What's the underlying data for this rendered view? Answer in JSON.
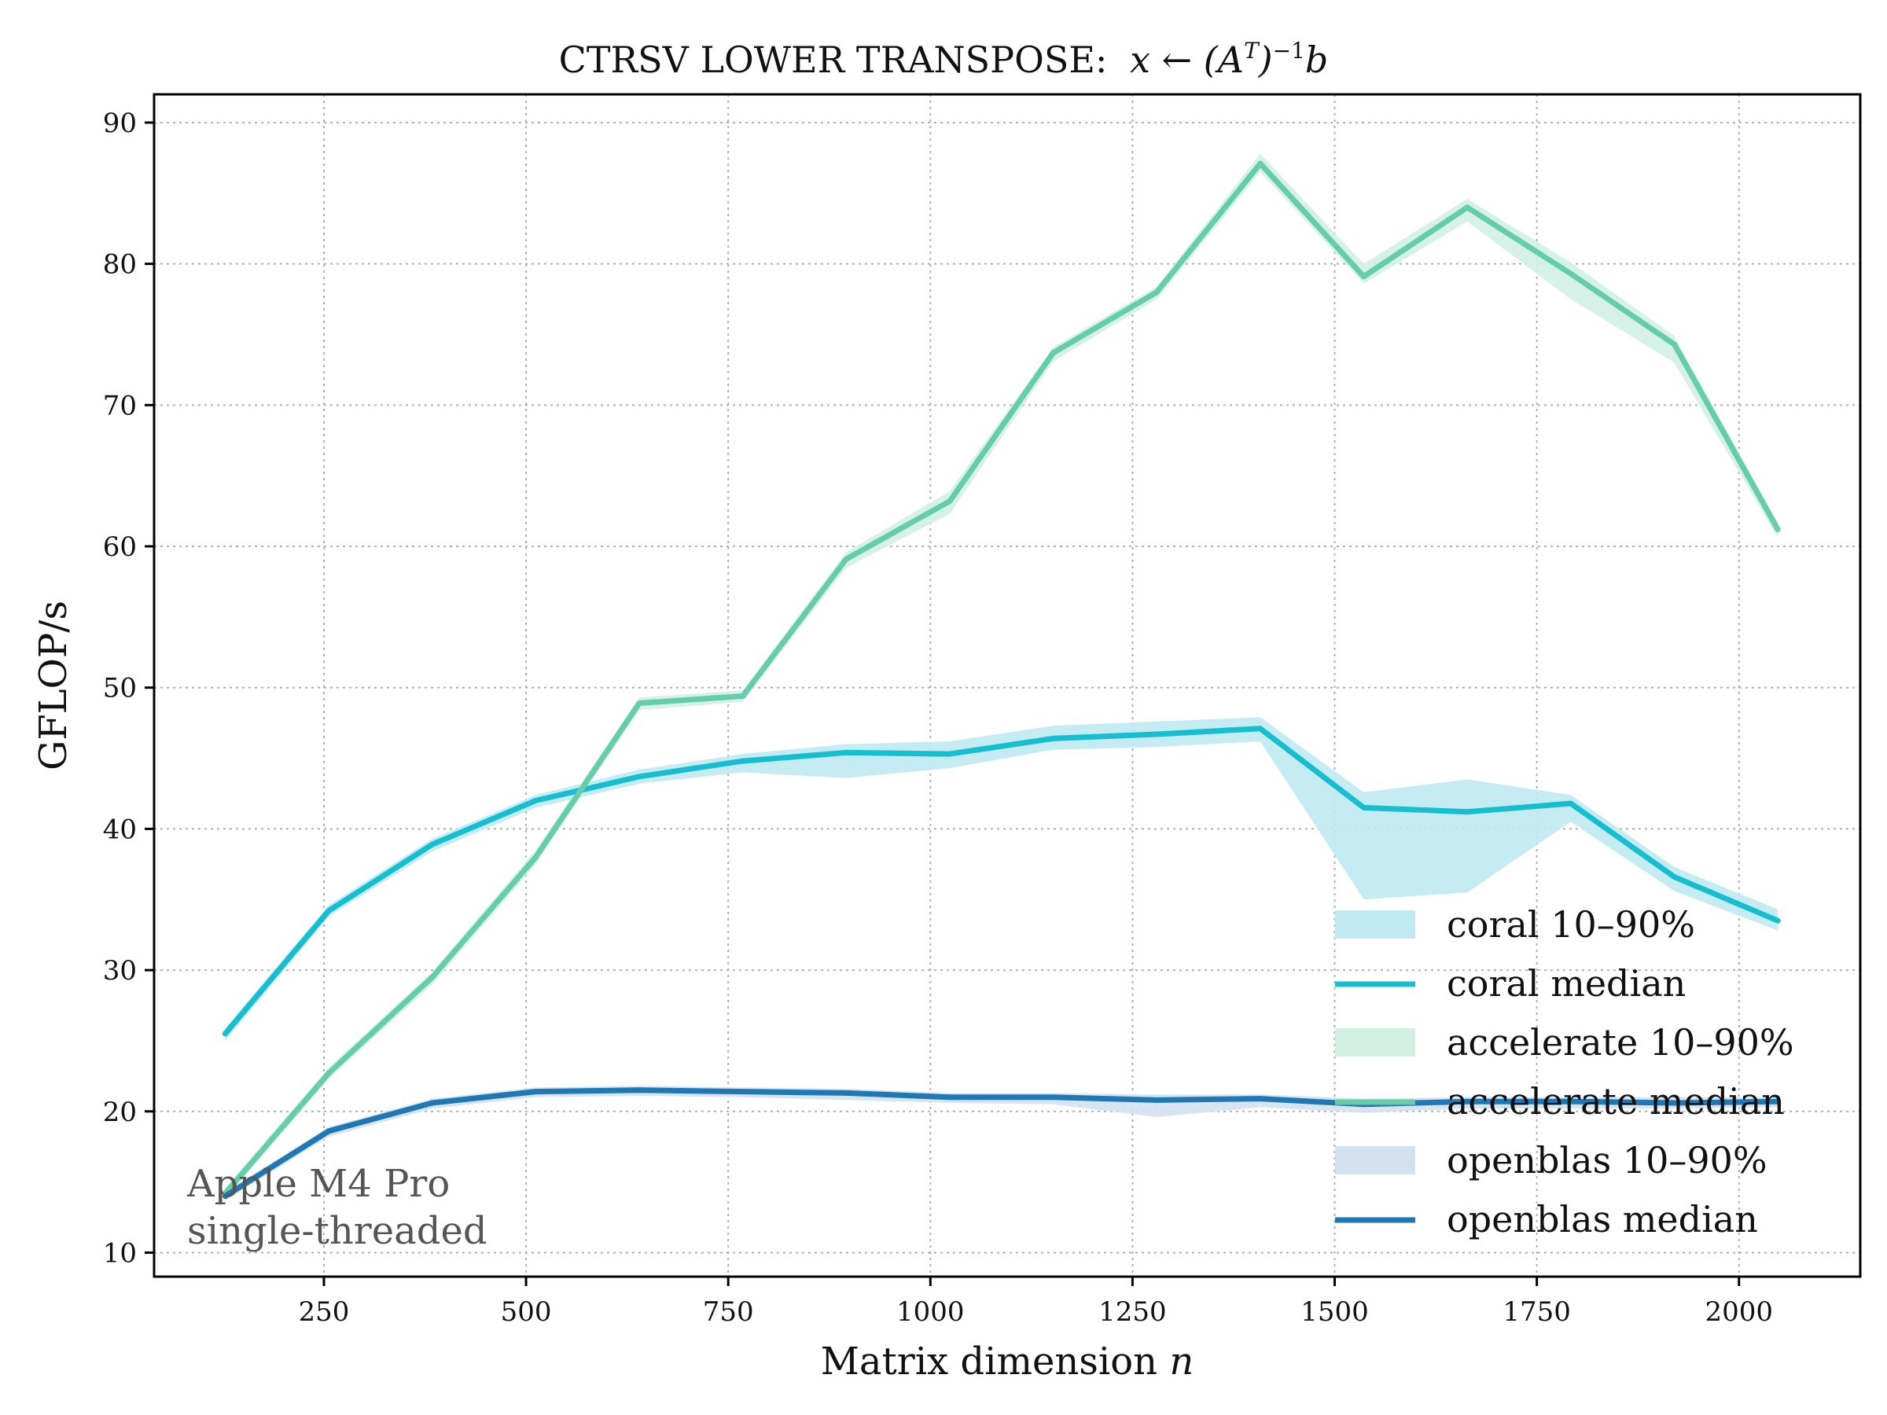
{
  "chart_data": {
    "type": "line",
    "title": "CTRSV LOWER TRANSPOSE:",
    "title_math": "x ← (A",
    "title_math_sup1": "T",
    "title_math_mid": ")",
    "title_math_sup2": "−1",
    "title_math_end": "b",
    "xlabel": "Matrix dimension ",
    "xlabel_math": "n",
    "ylabel": "GFLOP/s",
    "xlim": [
      40,
      2150
    ],
    "ylim": [
      8.3,
      92
    ],
    "xticks": [
      250,
      500,
      750,
      1000,
      1250,
      1500,
      1750,
      2000
    ],
    "yticks": [
      10,
      20,
      30,
      40,
      50,
      60,
      70,
      80,
      90
    ],
    "grid": true,
    "legend_position": "lower-right",
    "x": [
      128,
      256,
      384,
      512,
      640,
      768,
      896,
      1024,
      1152,
      1280,
      1408,
      1536,
      1664,
      1792,
      1920,
      2048
    ],
    "series": [
      {
        "name": "coral median",
        "band_name": "coral 10–90%",
        "color": "#17becf",
        "band_color": "#bfeaf2",
        "median": [
          25.5,
          34.2,
          38.9,
          42.0,
          43.7,
          44.8,
          45.4,
          45.3,
          46.4,
          46.7,
          47.1,
          41.5,
          41.2,
          41.8,
          36.6,
          33.5
        ],
        "p10": [
          25.0,
          33.8,
          38.4,
          41.5,
          43.2,
          44.0,
          43.6,
          44.3,
          45.6,
          45.8,
          46.2,
          35.0,
          35.5,
          40.5,
          35.6,
          32.8
        ],
        "p90": [
          25.9,
          34.6,
          39.3,
          42.4,
          44.2,
          45.3,
          46.0,
          46.2,
          47.3,
          47.6,
          47.9,
          42.6,
          43.5,
          42.4,
          37.3,
          34.3
        ]
      },
      {
        "name": "accelerate median",
        "band_name": "accelerate 10–90%",
        "color": "#66cdaa",
        "band_color": "#d2f0e4",
        "median": [
          14.2,
          22.7,
          29.5,
          38.0,
          48.9,
          49.4,
          59.1,
          63.2,
          73.7,
          78.0,
          87.1,
          79.1,
          84.0,
          79.3,
          74.3,
          61.2
        ],
        "p10": [
          13.8,
          22.3,
          29.0,
          37.5,
          48.4,
          49.0,
          58.5,
          62.3,
          73.1,
          77.5,
          86.5,
          78.6,
          83.0,
          77.5,
          73.0,
          60.6
        ],
        "p90": [
          14.6,
          23.1,
          29.9,
          38.5,
          49.3,
          49.8,
          59.6,
          63.9,
          74.1,
          78.4,
          87.8,
          80.0,
          84.6,
          80.1,
          74.9,
          61.7
        ]
      },
      {
        "name": "openblas median",
        "band_name": "openblas 10–90%",
        "color": "#1f77b4",
        "band_color": "#d3e1ef",
        "median": [
          14.0,
          18.6,
          20.6,
          21.4,
          21.5,
          21.4,
          21.3,
          21.0,
          21.0,
          20.8,
          20.9,
          20.5,
          20.7,
          20.7,
          20.6,
          20.7
        ],
        "p10": [
          13.7,
          18.2,
          20.2,
          21.0,
          21.1,
          21.0,
          20.8,
          20.6,
          20.5,
          19.6,
          20.3,
          19.9,
          20.2,
          20.2,
          20.2,
          20.3
        ],
        "p90": [
          14.3,
          18.9,
          20.9,
          21.7,
          21.8,
          21.7,
          21.6,
          21.3,
          21.3,
          21.2,
          21.2,
          20.9,
          21.0,
          21.0,
          21.0,
          21.0
        ]
      }
    ],
    "annotation": [
      "Apple M4 Pro",
      "single-threaded"
    ]
  }
}
